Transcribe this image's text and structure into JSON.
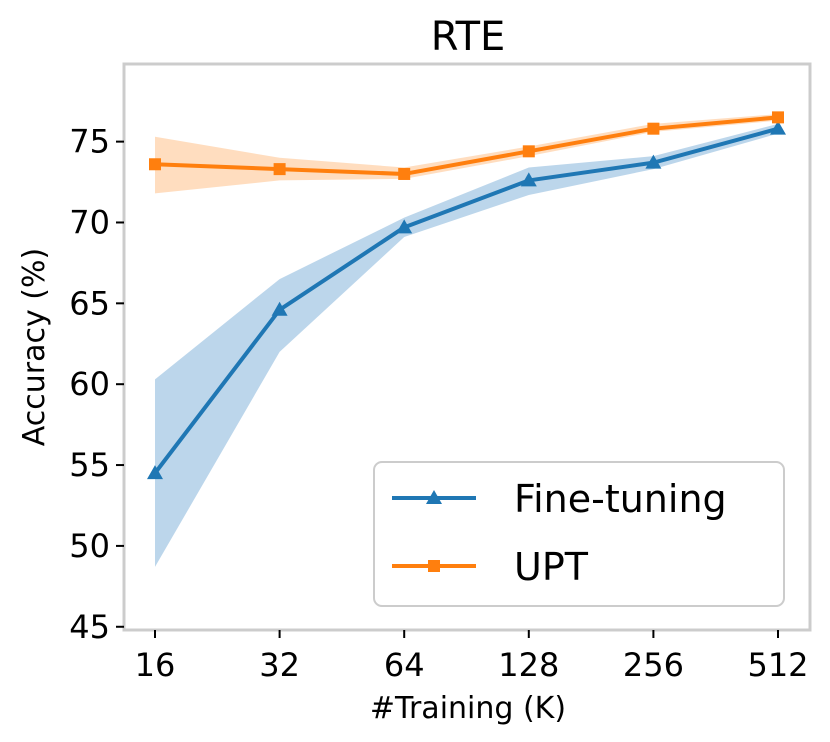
{
  "chart_data": {
    "type": "line",
    "title": "RTE",
    "xlabel": "#Training (K)",
    "ylabel": "Accuracy (%)",
    "categories": [
      "16",
      "32",
      "64",
      "128",
      "256",
      "512"
    ],
    "ylim": [
      44.8,
      79.8
    ],
    "yticks": [
      45,
      50,
      55,
      60,
      65,
      70,
      75
    ],
    "grid": false,
    "legend_position": "lower-right",
    "series": [
      {
        "name": "Fine-tuning",
        "color": "#1f77b4",
        "band_color": "#a6c8e4",
        "marker": "triangle",
        "values": [
          54.5,
          64.6,
          69.7,
          72.6,
          73.7,
          75.8
        ],
        "lower": [
          48.7,
          62.0,
          69.1,
          71.7,
          73.3,
          75.5
        ],
        "upper": [
          60.3,
          66.5,
          70.3,
          73.4,
          74.1,
          76.1
        ]
      },
      {
        "name": "UPT",
        "color": "#ff7f0e",
        "band_color": "#ffd1aa",
        "marker": "square",
        "values": [
          73.6,
          73.3,
          73.0,
          74.4,
          75.8,
          76.5
        ],
        "lower": [
          71.8,
          72.6,
          72.7,
          74.1,
          75.6,
          76.3
        ],
        "upper": [
          75.3,
          74.0,
          73.4,
          74.7,
          76.1,
          76.7
        ]
      }
    ]
  }
}
